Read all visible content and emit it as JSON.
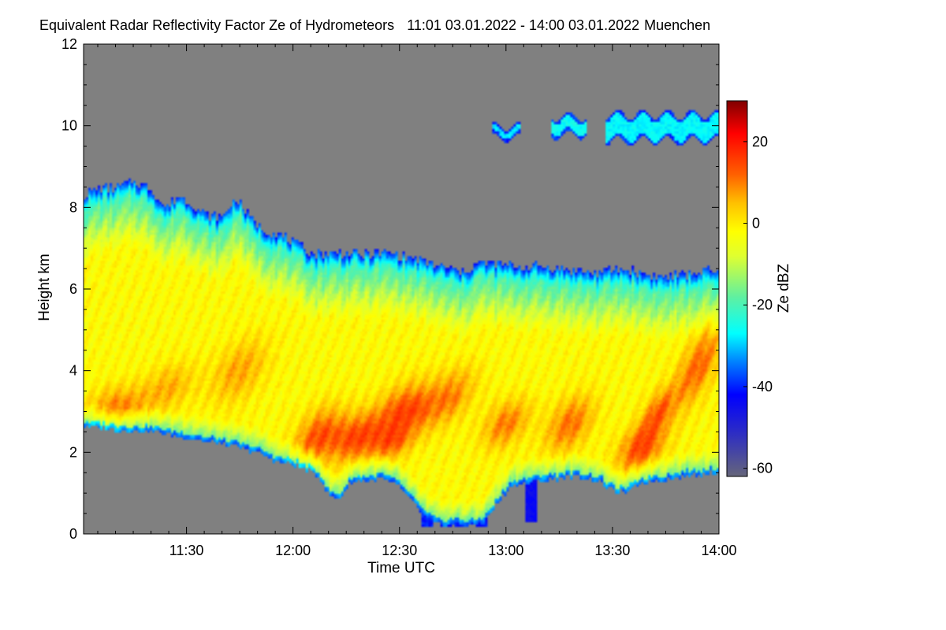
{
  "chart_data": {
    "type": "heatmap",
    "title": "Equivalent Radar Reflectivity Factor Ze of Hydrometeors",
    "time_range": "11:01 03.01.2022 - 14:00 03.01.2022",
    "location": "Muenchen",
    "xlabel": "Time UTC",
    "ylabel": "Height km",
    "x_start_minutes": 661,
    "x_end_minutes": 840,
    "x_ticks": [
      {
        "minutes": 690,
        "label": "11:30"
      },
      {
        "minutes": 720,
        "label": "12:00"
      },
      {
        "minutes": 750,
        "label": "12:30"
      },
      {
        "minutes": 780,
        "label": "13:00"
      },
      {
        "minutes": 810,
        "label": "13:30"
      },
      {
        "minutes": 840,
        "label": "14:00"
      }
    ],
    "ylim": [
      0,
      12
    ],
    "y_ticks": [
      0,
      2,
      4,
      6,
      8,
      10,
      12
    ],
    "colorbar": {
      "label": "Ze dBZ",
      "range": [
        -62,
        30
      ],
      "ticks": [
        20,
        0,
        -20,
        -40,
        -60
      ],
      "stops": [
        {
          "v": -62,
          "color": "#66667a"
        },
        {
          "v": -52,
          "color": "#3030c0"
        },
        {
          "v": -42,
          "color": "#0000ff"
        },
        {
          "v": -34,
          "color": "#0080ff"
        },
        {
          "v": -27,
          "color": "#00ffff"
        },
        {
          "v": -18,
          "color": "#60f0a0"
        },
        {
          "v": -8,
          "color": "#e0ff30"
        },
        {
          "v": -2,
          "color": "#ffff00"
        },
        {
          "v": 5,
          "color": "#ffc000"
        },
        {
          "v": 12,
          "color": "#ff6000"
        },
        {
          "v": 22,
          "color": "#ff0000"
        },
        {
          "v": 30,
          "color": "#800000"
        }
      ]
    },
    "no_signal_color": "#808080",
    "cloud_base_km": [
      [
        661,
        2.65
      ],
      [
        670,
        2.55
      ],
      [
        680,
        2.5
      ],
      [
        690,
        2.35
      ],
      [
        700,
        2.2
      ],
      [
        710,
        2.0
      ],
      [
        716,
        1.75
      ],
      [
        720,
        1.7
      ],
      [
        724,
        1.55
      ],
      [
        726,
        1.5
      ],
      [
        728,
        1.3
      ],
      [
        730,
        0.95
      ],
      [
        733,
        0.85
      ],
      [
        736,
        1.25
      ],
      [
        740,
        1.3
      ],
      [
        745,
        1.35
      ],
      [
        750,
        1.15
      ],
      [
        754,
        0.75
      ],
      [
        758,
        0.35
      ],
      [
        762,
        0.2
      ],
      [
        766,
        0.25
      ],
      [
        770,
        0.2
      ],
      [
        774,
        0.3
      ],
      [
        778,
        0.8
      ],
      [
        782,
        1.2
      ],
      [
        790,
        1.3
      ],
      [
        800,
        1.4
      ],
      [
        806,
        1.3
      ],
      [
        810,
        1.05
      ],
      [
        814,
        1.0
      ],
      [
        818,
        1.25
      ],
      [
        826,
        1.35
      ],
      [
        834,
        1.45
      ],
      [
        840,
        1.5
      ]
    ],
    "cloud_top_km": [
      [
        661,
        8.3
      ],
      [
        665,
        8.45
      ],
      [
        670,
        8.5
      ],
      [
        675,
        8.65
      ],
      [
        680,
        8.45
      ],
      [
        684,
        8.0
      ],
      [
        688,
        8.3
      ],
      [
        692,
        8.05
      ],
      [
        696,
        7.8
      ],
      [
        700,
        7.75
      ],
      [
        704,
        8.25
      ],
      [
        708,
        7.75
      ],
      [
        712,
        7.45
      ],
      [
        716,
        7.35
      ],
      [
        720,
        7.15
      ],
      [
        726,
        6.85
      ],
      [
        732,
        6.9
      ],
      [
        740,
        6.85
      ],
      [
        746,
        6.9
      ],
      [
        754,
        6.75
      ],
      [
        762,
        6.55
      ],
      [
        768,
        6.4
      ],
      [
        772,
        6.65
      ],
      [
        778,
        6.6
      ],
      [
        784,
        6.55
      ],
      [
        790,
        6.55
      ],
      [
        796,
        6.5
      ],
      [
        800,
        6.45
      ],
      [
        806,
        6.4
      ],
      [
        812,
        6.5
      ],
      [
        818,
        6.4
      ],
      [
        824,
        6.3
      ],
      [
        830,
        6.35
      ],
      [
        836,
        6.45
      ],
      [
        840,
        6.4
      ]
    ],
    "cores": [
      {
        "t": 670,
        "h": 3.1,
        "rt": 8,
        "rh": 0.5,
        "dbz": 10
      },
      {
        "t": 685,
        "h": 3.6,
        "rt": 7,
        "rh": 0.6,
        "dbz": 6
      },
      {
        "t": 705,
        "h": 4.0,
        "rt": 7,
        "rh": 0.8,
        "dbz": 7
      },
      {
        "t": 727,
        "h": 2.4,
        "rt": 6,
        "rh": 0.7,
        "dbz": 13
      },
      {
        "t": 738,
        "h": 2.35,
        "rt": 7,
        "rh": 0.6,
        "dbz": 14
      },
      {
        "t": 752,
        "h": 3.0,
        "rt": 8,
        "rh": 0.7,
        "dbz": 15
      },
      {
        "t": 748,
        "h": 2.2,
        "rt": 5,
        "rh": 0.4,
        "dbz": 8
      },
      {
        "t": 765,
        "h": 3.4,
        "rt": 6,
        "rh": 0.7,
        "dbz": 8
      },
      {
        "t": 780,
        "h": 2.7,
        "rt": 6,
        "rh": 0.6,
        "dbz": 10
      },
      {
        "t": 798,
        "h": 2.7,
        "rt": 6,
        "rh": 0.7,
        "dbz": 11
      },
      {
        "t": 818,
        "h": 2.1,
        "rt": 6,
        "rh": 0.6,
        "dbz": 14
      },
      {
        "t": 823,
        "h": 3.0,
        "rt": 4,
        "rh": 0.6,
        "dbz": 11
      },
      {
        "t": 834,
        "h": 4.1,
        "rt": 5,
        "rh": 1.0,
        "dbz": 12
      }
    ],
    "upper_cirrus": [
      {
        "t0": 808,
        "t1": 840,
        "h": 9.95,
        "thick": 0.65,
        "dbz": -27
      },
      {
        "t0": 793,
        "t1": 803,
        "h": 10.0,
        "thick": 0.45,
        "dbz": -26
      },
      {
        "t0": 776,
        "t1": 784,
        "h": 9.85,
        "thick": 0.3,
        "dbz": -28
      }
    ],
    "precip_fall": [
      {
        "t": 758,
        "bottom": 0.15,
        "dbz": -40
      },
      {
        "t": 763,
        "bottom": 0.2,
        "dbz": -42
      },
      {
        "t": 767,
        "bottom": 0.15,
        "dbz": -40
      },
      {
        "t": 771,
        "bottom": 0.25,
        "dbz": -42
      },
      {
        "t": 773,
        "bottom": 0.2,
        "dbz": -41
      },
      {
        "t": 787,
        "bottom": 0.3,
        "dbz": -44
      }
    ]
  }
}
